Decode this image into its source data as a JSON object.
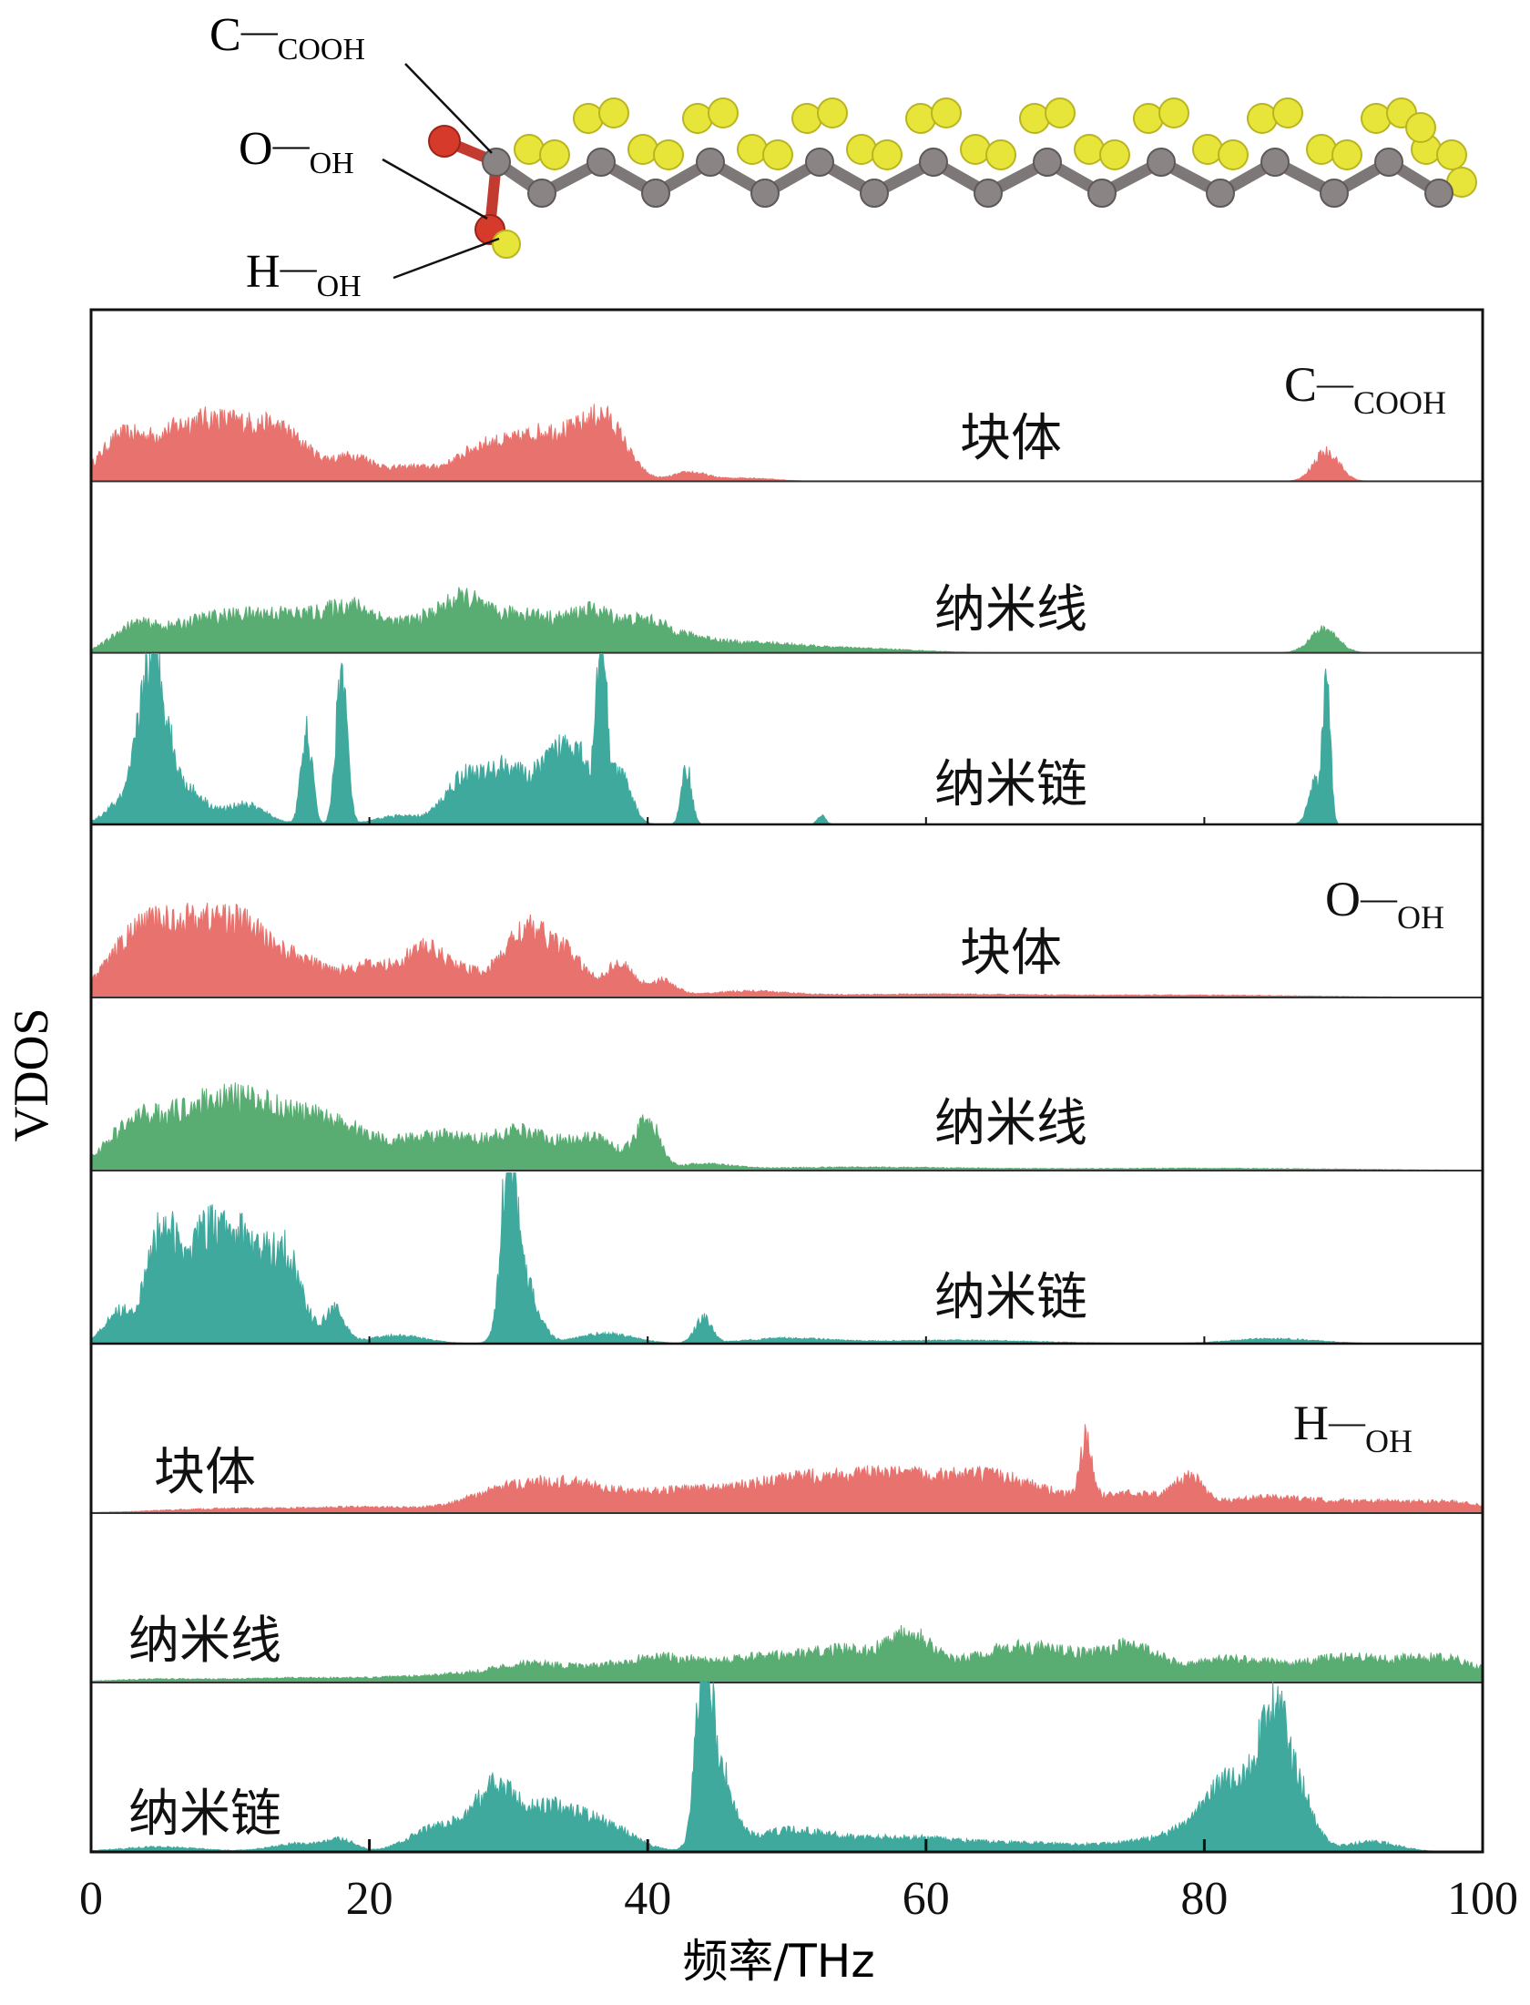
{
  "chart_data": {
    "type": "area",
    "x_axis": {
      "label": "频率/THz",
      "range": [
        0,
        100
      ],
      "ticks": [
        0,
        20,
        40,
        60,
        80,
        100
      ],
      "tick_labels": [
        "0",
        "20",
        "40",
        "60",
        "80",
        "100"
      ]
    },
    "y_axis": {
      "label": "VDOS"
    },
    "molecule_labels": [
      {
        "element": "C",
        "subscript": "COOH"
      },
      {
        "element": "O",
        "subscript": "OH"
      },
      {
        "element": "H",
        "subscript": "OH"
      }
    ],
    "colors": {
      "块体": "#e8736e",
      "纳米线": "#5aad72",
      "纳米链": "#3fa99d"
    },
    "groups": [
      {
        "element": "C",
        "subscript": "COOH",
        "series": [
          {
            "name": "块体",
            "color": "#e8736e",
            "peaks": [
              [
                2,
                0.32,
                1.5
              ],
              [
                6,
                0.38,
                2.5
              ],
              [
                10,
                0.42,
                2.5
              ],
              [
                14,
                0.36,
                2
              ],
              [
                19,
                0.22,
                1.5
              ],
              [
                23,
                0.12,
                1.5
              ],
              [
                28,
                0.28,
                2
              ],
              [
                33,
                0.45,
                2.5
              ],
              [
                37,
                0.48,
                1.5
              ],
              [
                43,
                0.08,
                1.2
              ],
              [
                47,
                0.03,
                2
              ],
              [
                88.8,
                0.28,
                0.9
              ]
            ]
          },
          {
            "name": "纳米线",
            "color": "#5aad72",
            "peaks": [
              [
                3,
                0.2,
                1.5
              ],
              [
                8,
                0.28,
                3
              ],
              [
                14,
                0.32,
                3
              ],
              [
                19,
                0.35,
                2
              ],
              [
                24,
                0.28,
                2
              ],
              [
                27,
                0.38,
                1.5
              ],
              [
                31,
                0.35,
                2
              ],
              [
                36,
                0.38,
                2
              ],
              [
                40,
                0.22,
                1.5
              ],
              [
                43,
                0.12,
                2
              ],
              [
                48,
                0.08,
                3
              ],
              [
                55,
                0.04,
                4
              ],
              [
                88.6,
                0.22,
                1
              ]
            ]
          },
          {
            "name": "纳米链",
            "color": "#3fa99d",
            "peaks": [
              [
                2,
                0.12,
                1
              ],
              [
                4,
                0.7,
                0.8
              ],
              [
                5,
                0.55,
                0.8
              ],
              [
                7,
                0.2,
                1.2
              ],
              [
                11,
                0.12,
                1.5
              ],
              [
                15.5,
                0.55,
                0.4
              ],
              [
                18,
                0.95,
                0.4
              ],
              [
                22,
                0.05,
                1.5
              ],
              [
                27,
                0.3,
                1.5
              ],
              [
                30,
                0.3,
                1.2
              ],
              [
                33,
                0.35,
                1.2
              ],
              [
                35,
                0.4,
                1
              ],
              [
                36.7,
                1.0,
                0.35
              ],
              [
                38,
                0.3,
                0.8
              ],
              [
                42.8,
                0.35,
                0.35
              ],
              [
                52.5,
                0.05,
                0.3
              ],
              [
                88.8,
                0.95,
                0.25
              ],
              [
                88,
                0.25,
                0.5
              ]
            ]
          }
        ]
      },
      {
        "element": "O",
        "subscript": "OH",
        "series": [
          {
            "name": "块体",
            "color": "#e8736e",
            "peaks": [
              [
                3,
                0.45,
                2
              ],
              [
                7,
                0.62,
                2.5
              ],
              [
                11,
                0.5,
                2
              ],
              [
                15,
                0.3,
                2
              ],
              [
                20,
                0.28,
                2
              ],
              [
                24,
                0.4,
                1.5
              ],
              [
                27,
                0.2,
                1.5
              ],
              [
                31,
                0.58,
                1.5
              ],
              [
                34,
                0.4,
                1.5
              ],
              [
                38,
                0.3,
                1
              ],
              [
                41,
                0.15,
                1
              ],
              [
                47,
                0.05,
                3
              ],
              [
                60,
                0.03,
                8
              ],
              [
                80,
                0.02,
                8
              ]
            ]
          },
          {
            "name": "纳米线",
            "color": "#5aad72",
            "peaks": [
              [
                3,
                0.35,
                2
              ],
              [
                8,
                0.52,
                3
              ],
              [
                13,
                0.45,
                3
              ],
              [
                18,
                0.32,
                2.5
              ],
              [
                25,
                0.32,
                3
              ],
              [
                31,
                0.32,
                2
              ],
              [
                36,
                0.3,
                2
              ],
              [
                40,
                0.45,
                0.8
              ],
              [
                44,
                0.05,
                2
              ],
              [
                55,
                0.03,
                8
              ],
              [
                80,
                0.02,
                10
              ]
            ]
          },
          {
            "name": "纳米链",
            "color": "#3fa99d",
            "peaks": [
              [
                2,
                0.2,
                1
              ],
              [
                5,
                0.65,
                1
              ],
              [
                8,
                0.6,
                1.5
              ],
              [
                11,
                0.55,
                1.5
              ],
              [
                14,
                0.5,
                1.2
              ],
              [
                17.5,
                0.2,
                0.7
              ],
              [
                22,
                0.05,
                2
              ],
              [
                30,
                1.0,
                0.5
              ],
              [
                31,
                0.4,
                1
              ],
              [
                37,
                0.06,
                2
              ],
              [
                44,
                0.15,
                0.6
              ],
              [
                50,
                0.03,
                3
              ],
              [
                62,
                0.02,
                6
              ],
              [
                85,
                0.03,
                3
              ]
            ]
          }
        ]
      },
      {
        "element": "H",
        "subscript": "OH",
        "series": [
          {
            "name": "块体",
            "color": "#e8736e",
            "peaks": [
              [
                10,
                0.04,
                5
              ],
              [
                20,
                0.05,
                4
              ],
              [
                30,
                0.2,
                3
              ],
              [
                35,
                0.22,
                3
              ],
              [
                42,
                0.18,
                3
              ],
              [
                48,
                0.2,
                3
              ],
              [
                53,
                0.25,
                3
              ],
              [
                58,
                0.25,
                3
              ],
              [
                63,
                0.22,
                3
              ],
              [
                67,
                0.2,
                3
              ],
              [
                71.5,
                0.55,
                0.4
              ],
              [
                75,
                0.18,
                3
              ],
              [
                79,
                0.25,
                1
              ],
              [
                84,
                0.12,
                3
              ],
              [
                91,
                0.1,
                4
              ],
              [
                98,
                0.08,
                3
              ]
            ]
          },
          {
            "name": "纳米线",
            "color": "#5aad72",
            "peaks": [
              [
                5,
                0.03,
                4
              ],
              [
                15,
                0.04,
                4
              ],
              [
                25,
                0.06,
                4
              ],
              [
                32,
                0.16,
                3
              ],
              [
                40,
                0.2,
                3
              ],
              [
                48,
                0.22,
                4
              ],
              [
                55,
                0.25,
                3
              ],
              [
                59,
                0.35,
                1.5
              ],
              [
                65,
                0.25,
                3
              ],
              [
                70,
                0.22,
                3
              ],
              [
                75,
                0.28,
                2
              ],
              [
                82,
                0.22,
                3
              ],
              [
                90,
                0.22,
                3
              ],
              [
                97,
                0.22,
                3
              ]
            ]
          },
          {
            "name": "纳米链",
            "color": "#3fa99d",
            "peaks": [
              [
                5,
                0.03,
                3
              ],
              [
                15,
                0.05,
                2
              ],
              [
                18,
                0.06,
                1
              ],
              [
                25,
                0.15,
                2
              ],
              [
                29,
                0.35,
                1.5
              ],
              [
                33,
                0.25,
                2
              ],
              [
                37,
                0.15,
                2
              ],
              [
                44,
                1.0,
                0.5
              ],
              [
                45,
                0.5,
                1
              ],
              [
                50,
                0.12,
                3
              ],
              [
                58,
                0.08,
                4
              ],
              [
                68,
                0.05,
                5
              ],
              [
                78,
                0.08,
                3
              ],
              [
                82,
                0.4,
                2
              ],
              [
                85,
                0.75,
                1
              ],
              [
                87,
                0.3,
                1
              ],
              [
                92,
                0.06,
                2
              ]
            ]
          }
        ]
      }
    ],
    "grid": false,
    "legend": "none"
  }
}
